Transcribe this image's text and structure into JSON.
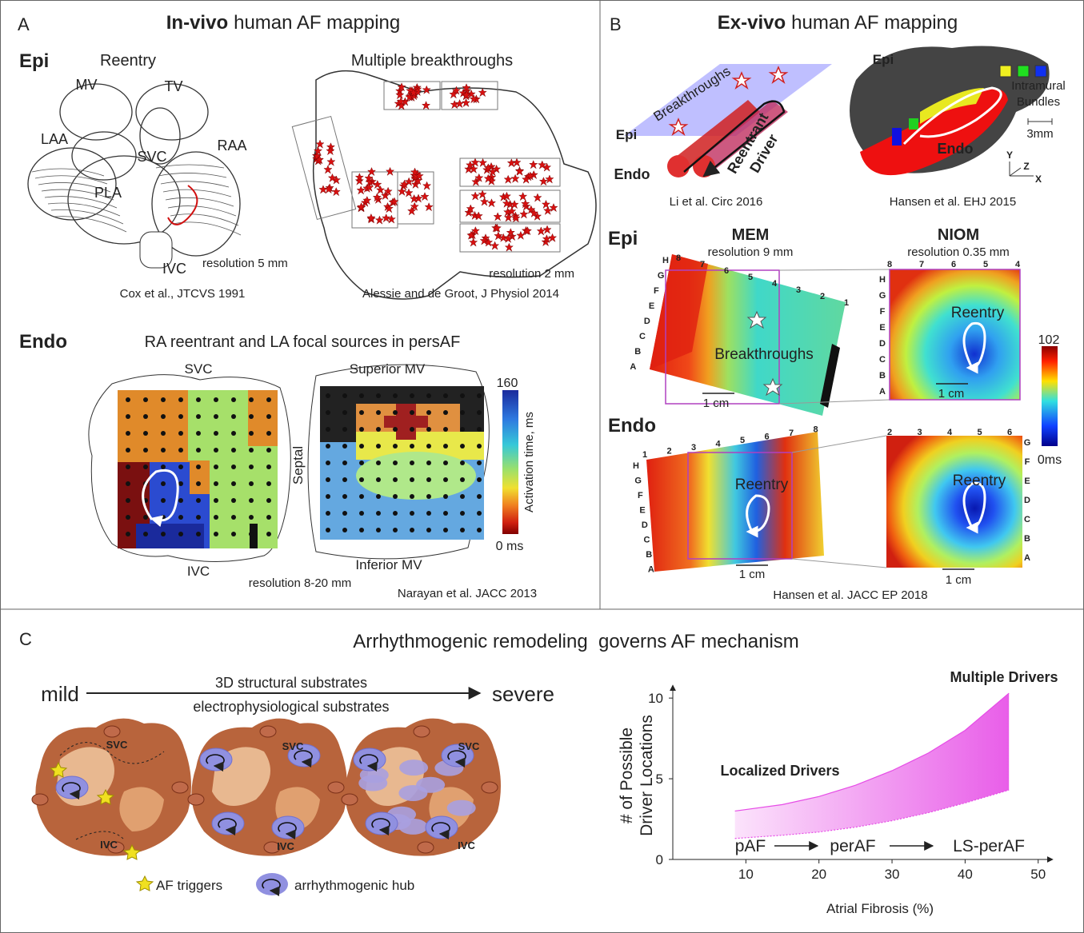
{
  "panel_a": {
    "letter": "A",
    "title_bold": "In-vivo",
    "title_rest": "human AF mapping",
    "epi_label": "Epi",
    "reentry": {
      "title": "Reentry",
      "labels": [
        "MV",
        "TV",
        "LAA",
        "SVC",
        "RAA",
        "PLA",
        "IVC"
      ],
      "resolution": "resolution 5 mm",
      "citation": "Cox et al., JTCVS 1991"
    },
    "breakthroughs": {
      "title": "Multiple breakthroughs",
      "resolution": "resolution 2 mm",
      "citation": "Alessie and de Groot, J Physiol 2014"
    },
    "endo_label": "Endo",
    "endo_title": "RA reentrant and LA focal sources in persAF",
    "ra_labels": [
      "SVC",
      "IVC"
    ],
    "septal": "Septal",
    "la_labels": [
      "Superior MV",
      "Inferior MV"
    ],
    "colorbar": {
      "max": "160",
      "min": "0 ms",
      "title": "Activation time, ms"
    },
    "resolution": "resolution 8-20 mm",
    "citation": "Narayan et al. JACC 2013"
  },
  "panel_b": {
    "letter": "B",
    "title_bold": "Ex-vivo",
    "title_rest": "human AF mapping",
    "schematic": {
      "breakthroughs": "Breakthroughs",
      "epi": "Epi",
      "endo": "Endo",
      "driver": [
        "Reentrant",
        "Driver"
      ],
      "citation": "Li et al. Circ 2016"
    },
    "heart_3d": {
      "epi": "Epi",
      "bundles": [
        "Intramural",
        "Bundles"
      ],
      "scale": "3mm",
      "endo": "Endo",
      "axes": [
        "Y",
        "Z",
        "X"
      ],
      "citation": "Hansen et al. EHJ 2015"
    },
    "epi_row": {
      "label": "Epi",
      "mem": {
        "title": "MEM",
        "resolution": "resolution 9 mm",
        "columns": [
          "8",
          "7",
          "6",
          "5",
          "4",
          "3",
          "2",
          "1"
        ],
        "rows": [
          "H",
          "G",
          "F",
          "E",
          "D",
          "C",
          "B",
          "A"
        ],
        "annotation": "Breakthroughs",
        "scale": "1 cm"
      },
      "niom": {
        "title": "NIOM",
        "resolution": "resolution 0.35 mm",
        "columns": [
          "8",
          "7",
          "6",
          "5",
          "4"
        ],
        "rows": [
          "H",
          "G",
          "F",
          "E",
          "D",
          "C",
          "B",
          "A"
        ],
        "annotation": "Reentry",
        "scale": "1 cm"
      }
    },
    "colorbar": {
      "max": "102",
      "min": "0ms"
    },
    "endo_row": {
      "label": "Endo",
      "mem": {
        "columns": [
          "1",
          "2",
          "3",
          "4",
          "5",
          "6",
          "7",
          "8"
        ],
        "rows": [
          "H",
          "G",
          "F",
          "E",
          "D",
          "C",
          "B",
          "A"
        ],
        "annotation": "Reentry",
        "scale": "1 cm"
      },
      "niom": {
        "columns": [
          "2",
          "3",
          "4",
          "5",
          "6"
        ],
        "rows": [
          "G",
          "F",
          "E",
          "D",
          "C",
          "B",
          "A"
        ],
        "annotation": "Reentry",
        "scale": "1 cm"
      },
      "citation": "Hansen et al. JACC EP 2018"
    }
  },
  "panel_c": {
    "letter": "C",
    "title": "Arrhythmogenic remodeling  governs AF mechanism",
    "scale_from": "mild",
    "scale_to": "severe",
    "substrates": [
      "3D structural substrates",
      "electrophysiological substrates"
    ],
    "heart_labels": [
      [
        "SVC",
        "IVC"
      ],
      [
        "SVC",
        "IVC"
      ],
      [
        "SVC",
        "IVC"
      ]
    ],
    "legend": [
      "AF triggers",
      "arrhythmogenic hub"
    ],
    "chart": {
      "type": "area",
      "xlabel": "Atrial Fibrosis (%)",
      "ylabel": [
        "# of Possible",
        "Driver Locations"
      ],
      "xlim": [
        0,
        52
      ],
      "ylim": [
        0,
        10.8
      ],
      "xticks": [
        10,
        20,
        30,
        40,
        50
      ],
      "yticks": [
        0,
        5,
        10
      ],
      "x": [
        8.5,
        15,
        20,
        25,
        30,
        35,
        40,
        46
      ],
      "upper": [
        3.0,
        3.4,
        3.9,
        4.6,
        5.5,
        6.6,
        8.0,
        10.3
      ],
      "lower": [
        1.3,
        1.5,
        1.7,
        2.0,
        2.4,
        2.9,
        3.5,
        4.3
      ],
      "color": "#e64ce6",
      "annotations": [
        "Localized Drivers",
        "Multiple Drivers"
      ],
      "stages": [
        "pAF",
        "perAF",
        "LS-perAF"
      ]
    }
  }
}
